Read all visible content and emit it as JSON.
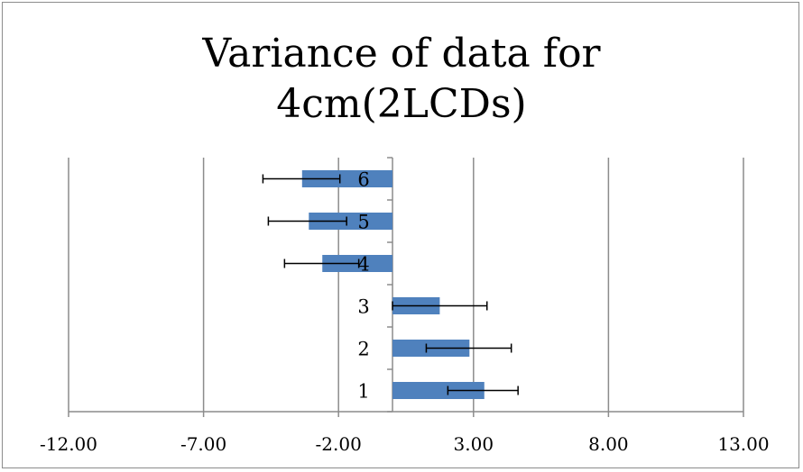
{
  "chart_data": {
    "type": "bar",
    "orientation": "horizontal",
    "title_lines": [
      "Variance of data for",
      "4cm(2LCDs)"
    ],
    "categories": [
      "1",
      "2",
      "3",
      "4",
      "5",
      "6"
    ],
    "values": [
      3.4,
      2.85,
      1.75,
      -2.6,
      -3.1,
      -3.35
    ],
    "error_bars": [
      {
        "low": 2.05,
        "high": 4.65
      },
      {
        "low": 1.25,
        "high": 4.4
      },
      {
        "low": 0.0,
        "high": 3.5
      },
      {
        "low": -4.0,
        "high": -1.25
      },
      {
        "low": -4.6,
        "high": -1.7
      },
      {
        "low": -4.8,
        "high": -1.95
      }
    ],
    "x_ticks": [
      "-12.00",
      "-7.00",
      "-2.00",
      "3.00",
      "8.00",
      "13.00"
    ],
    "x_tick_values": [
      -12,
      -7,
      -2,
      3,
      8,
      13
    ],
    "xlim": [
      -12,
      13
    ],
    "grid": "vertical",
    "legend": "none",
    "colors": {
      "bar": "#4f81bd",
      "grid": "#8c8c8c",
      "error_bar": "#000000"
    }
  }
}
